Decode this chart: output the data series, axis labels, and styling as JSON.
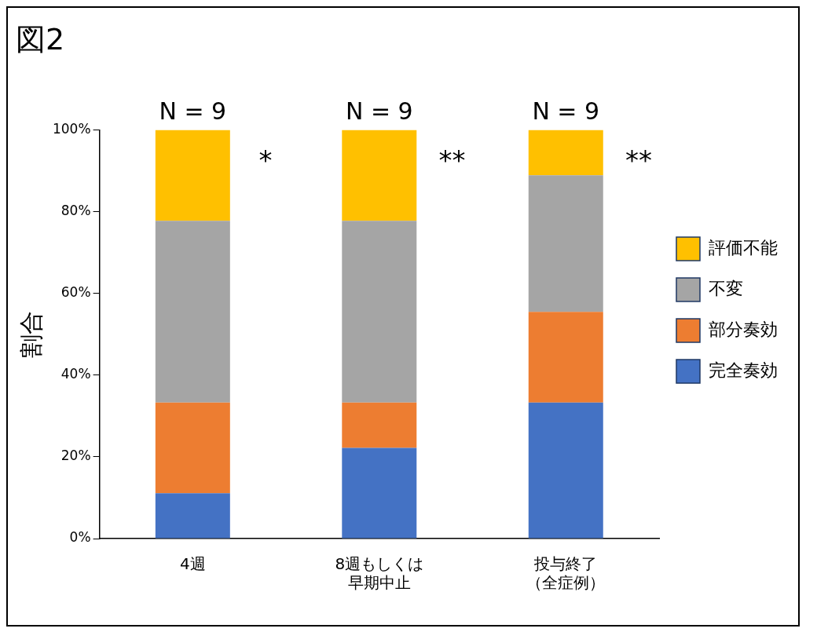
{
  "chart_data": {
    "type": "bar",
    "title": "図2",
    "ylabel": "割合",
    "stacked": true,
    "categories": [
      "4週",
      "8週もしくは早期中止",
      "投与終了（全症例）"
    ],
    "series": [
      {
        "name": "完全奏効",
        "color": "#4472c4",
        "values": [
          11.1,
          22.2,
          33.3
        ]
      },
      {
        "name": "部分奏効",
        "color": "#ed7d31",
        "values": [
          22.2,
          11.1,
          22.2
        ]
      },
      {
        "name": "不変",
        "color": "#a5a5a5",
        "values": [
          44.5,
          44.5,
          33.4
        ]
      },
      {
        "name": "評価不能",
        "color": "#ffc000",
        "values": [
          22.2,
          22.2,
          11.1
        ]
      }
    ],
    "ylim": [
      0,
      100
    ],
    "yticks": [
      {
        "value": 0,
        "label": "0%"
      },
      {
        "value": 20,
        "label": "20%"
      },
      {
        "value": 40,
        "label": "40%"
      },
      {
        "value": 60,
        "label": "60%"
      },
      {
        "value": 80,
        "label": "80%"
      },
      {
        "value": 100,
        "label": "100%"
      }
    ],
    "grid": false,
    "legend": "right",
    "annotations": [
      {
        "text": "N = 9",
        "x": "4週",
        "y": 100
      },
      {
        "text": "N = 9",
        "x": "8週もしくは早期中止",
        "y": 100
      },
      {
        "text": "N = 9",
        "x": "投与終了（全症例）",
        "y": 100
      },
      "*",
      "**",
      "**"
    ]
  }
}
